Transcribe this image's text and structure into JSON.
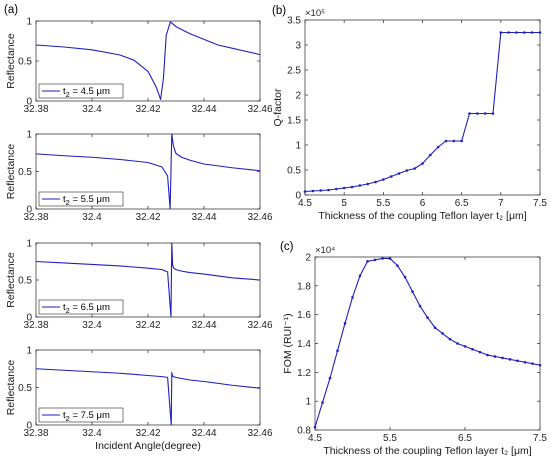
{
  "figure": {
    "panel_labels": [
      "(a)",
      "(b)",
      "(c)"
    ]
  },
  "chart_data": [
    {
      "type": "line",
      "panel": "(a)",
      "xlabel": "",
      "ylabel": "Reflectance",
      "xlim": [
        32.38,
        32.46
      ],
      "ylim": [
        0,
        1
      ],
      "xticks": [
        32.38,
        32.4,
        32.42,
        32.44,
        32.46
      ],
      "xtick_labels": [
        "32.38",
        "32.4",
        "32.42",
        "32.44",
        "32.46"
      ],
      "yticks": [
        0,
        0.5,
        1
      ],
      "ytick_labels": [
        "0",
        "0.5",
        "1"
      ],
      "legend": {
        "prefix": "t",
        "sub": "2",
        "rest": " = 4.5 μm",
        "placement": "bottom-left"
      },
      "line_color": "#1f1fbf",
      "series": [
        {
          "x": [
            32.38,
            32.39,
            32.4,
            32.41,
            32.415,
            32.42,
            32.423,
            32.4245,
            32.4255,
            32.4265,
            32.428,
            32.43,
            32.435,
            32.44,
            32.445,
            32.45,
            32.455,
            32.46
          ],
          "y": [
            0.7,
            0.675,
            0.64,
            0.575,
            0.51,
            0.37,
            0.17,
            0.02,
            0.28,
            0.82,
            0.99,
            0.93,
            0.84,
            0.77,
            0.7,
            0.66,
            0.62,
            0.58
          ]
        }
      ]
    },
    {
      "type": "line",
      "panel": "(a)",
      "xlabel": "",
      "ylabel": "Reflectance",
      "xlim": [
        32.38,
        32.46
      ],
      "ylim": [
        0,
        1
      ],
      "xticks": [
        32.38,
        32.4,
        32.42,
        32.44,
        32.46
      ],
      "xtick_labels": [
        "32.38",
        "32.4",
        "32.42",
        "32.44",
        "32.46"
      ],
      "yticks": [
        0,
        0.5,
        1
      ],
      "ytick_labels": [
        "0",
        "0.5",
        "1"
      ],
      "legend": {
        "prefix": "t",
        "sub": "2",
        "rest": " = 5.5 μm",
        "placement": "bottom-left"
      },
      "line_color": "#1f1fbf",
      "series": [
        {
          "x": [
            32.38,
            32.39,
            32.4,
            32.41,
            32.42,
            32.425,
            32.427,
            32.4279,
            32.4285,
            32.429,
            32.4295,
            32.43,
            32.432,
            32.435,
            32.44,
            32.45,
            32.46
          ],
          "y": [
            0.735,
            0.71,
            0.69,
            0.66,
            0.62,
            0.56,
            0.44,
            0.0,
            1.0,
            0.86,
            0.79,
            0.74,
            0.69,
            0.65,
            0.6,
            0.55,
            0.51
          ]
        }
      ]
    },
    {
      "type": "line",
      "panel": "(a)",
      "xlabel": "",
      "ylabel": "Reflectance",
      "xlim": [
        32.38,
        32.46
      ],
      "ylim": [
        0,
        1
      ],
      "xticks": [
        32.38,
        32.4,
        32.42,
        32.44,
        32.46
      ],
      "xtick_labels": [
        "32.38",
        "32.4",
        "32.42",
        "32.44",
        "32.46"
      ],
      "yticks": [
        0,
        0.5,
        1
      ],
      "ytick_labels": [
        "0",
        "0.5",
        "1"
      ],
      "legend": {
        "prefix": "t",
        "sub": "2",
        "rest": " = 6.5 μm",
        "placement": "bottom-left"
      },
      "line_color": "#1f1fbf",
      "series": [
        {
          "x": [
            32.38,
            32.39,
            32.4,
            32.41,
            32.42,
            32.425,
            32.427,
            32.4282,
            32.4285,
            32.4288,
            32.4292,
            32.43,
            32.432,
            32.435,
            32.44,
            32.45,
            32.46
          ],
          "y": [
            0.75,
            0.73,
            0.71,
            0.69,
            0.66,
            0.64,
            0.61,
            0.0,
            1.0,
            0.7,
            0.66,
            0.64,
            0.62,
            0.6,
            0.58,
            0.53,
            0.5
          ]
        }
      ]
    },
    {
      "type": "line",
      "panel": "(a)",
      "xlabel": "Incident Angle(degree)",
      "ylabel": "Reflectance",
      "xlim": [
        32.38,
        32.46
      ],
      "ylim": [
        0,
        1
      ],
      "xticks": [
        32.38,
        32.4,
        32.42,
        32.44,
        32.46
      ],
      "xtick_labels": [
        "32.38",
        "32.4",
        "32.42",
        "32.44",
        "32.46"
      ],
      "yticks": [
        0,
        0.5,
        1
      ],
      "ytick_labels": [
        "0",
        "0.5",
        "1"
      ],
      "legend": {
        "prefix": "t",
        "sub": "2",
        "rest": " = 7.5 μm",
        "placement": "bottom-left"
      },
      "line_color": "#1f1fbf",
      "series": [
        {
          "x": [
            32.38,
            32.39,
            32.4,
            32.41,
            32.42,
            32.425,
            32.427,
            32.4283,
            32.4285,
            32.4287,
            32.429,
            32.43,
            32.432,
            32.435,
            32.44,
            32.45,
            32.46
          ],
          "y": [
            0.75,
            0.73,
            0.71,
            0.69,
            0.66,
            0.645,
            0.635,
            0.0,
            0.7,
            0.66,
            0.645,
            0.635,
            0.62,
            0.6,
            0.58,
            0.53,
            0.49
          ]
        }
      ]
    },
    {
      "type": "line",
      "panel": "(b)",
      "xlabel": "Thickness of the coupling Teflon layer t₂ [μm]",
      "ylabel": "Q-factor",
      "exponent_label": "×10⁵",
      "xlim": [
        4.5,
        7.5
      ],
      "ylim": [
        0,
        3.5
      ],
      "xticks": [
        4.5,
        5,
        5.5,
        6,
        6.5,
        7,
        7.5
      ],
      "xtick_labels": [
        "4.5",
        "5",
        "5.5",
        "6",
        "6.5",
        "7",
        "7.5"
      ],
      "yticks": [
        0,
        0.5,
        1,
        1.5,
        2,
        2.5,
        3,
        3.5
      ],
      "ytick_labels": [
        "0",
        "0.5",
        "1",
        "1.5",
        "2",
        "2.5",
        "3",
        "3.5"
      ],
      "line_color": "#1f1fbf",
      "markers": true,
      "series": [
        {
          "x": [
            4.5,
            4.6,
            4.7,
            4.8,
            4.9,
            5.0,
            5.1,
            5.2,
            5.3,
            5.4,
            5.5,
            5.6,
            5.7,
            5.8,
            5.9,
            6.0,
            6.1,
            6.2,
            6.3,
            6.4,
            6.5,
            6.6,
            6.7,
            6.8,
            6.9,
            7.0,
            7.1,
            7.2,
            7.3,
            7.4,
            7.5
          ],
          "y": [
            0.07,
            0.08,
            0.09,
            0.1,
            0.12,
            0.14,
            0.16,
            0.19,
            0.22,
            0.26,
            0.31,
            0.37,
            0.43,
            0.49,
            0.53,
            0.63,
            0.8,
            0.96,
            1.08,
            1.08,
            1.08,
            1.63,
            1.63,
            1.63,
            1.63,
            3.25,
            3.25,
            3.25,
            3.25,
            3.25,
            3.25
          ]
        }
      ]
    },
    {
      "type": "line",
      "panel": "(c)",
      "xlabel": "Thickness of the coupling Teflon layer t₂ [μm]",
      "ylabel": "FOM (RUI⁻¹)",
      "exponent_label": "×10⁴",
      "xlim": [
        4.5,
        7.5
      ],
      "ylim": [
        0.8,
        2.0
      ],
      "xticks": [
        4.5,
        5.5,
        6.5,
        7.5
      ],
      "xtick_labels": [
        "4.5",
        "5.5",
        "6.5",
        "7.5"
      ],
      "yticks": [
        0.8,
        1.0,
        1.2,
        1.4,
        1.6,
        1.8,
        2.0
      ],
      "ytick_labels": [
        "0.8",
        "1",
        "1.2",
        "1.4",
        "1.6",
        "1.8",
        "2"
      ],
      "line_color": "#1f1fbf",
      "markers": true,
      "series": [
        {
          "x": [
            4.5,
            4.6,
            4.7,
            4.8,
            4.9,
            5.0,
            5.1,
            5.2,
            5.3,
            5.4,
            5.5,
            5.6,
            5.7,
            5.8,
            5.9,
            6.0,
            6.1,
            6.2,
            6.3,
            6.4,
            6.5,
            6.6,
            6.7,
            6.8,
            6.9,
            7.0,
            7.1,
            7.2,
            7.3,
            7.4,
            7.5
          ],
          "y": [
            0.82,
            0.99,
            1.16,
            1.35,
            1.54,
            1.72,
            1.87,
            1.97,
            1.98,
            1.99,
            1.99,
            1.94,
            1.86,
            1.76,
            1.66,
            1.58,
            1.51,
            1.47,
            1.43,
            1.4,
            1.38,
            1.36,
            1.34,
            1.32,
            1.31,
            1.3,
            1.29,
            1.28,
            1.27,
            1.26,
            1.25
          ]
        }
      ]
    }
  ]
}
